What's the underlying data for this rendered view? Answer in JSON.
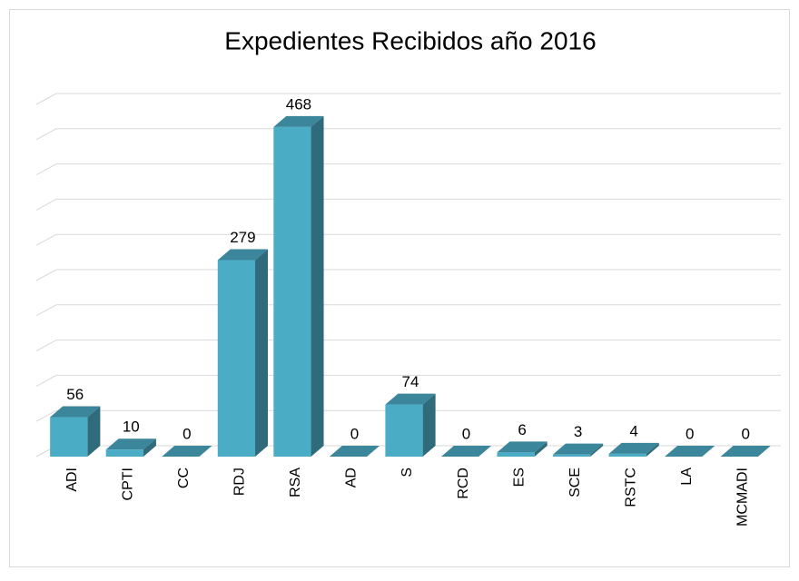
{
  "chart_data": {
    "type": "bar3d",
    "title": "Expedientes Recibidos año 2016",
    "categories": [
      "ADI",
      "CPTI",
      "CC",
      "RDJ",
      "RSA",
      "AD",
      "S",
      "RCD",
      "ES",
      "SCE",
      "RSTC",
      "LA",
      "MCMADI"
    ],
    "values": [
      56,
      10,
      0,
      279,
      468,
      0,
      74,
      0,
      6,
      3,
      4,
      0,
      0
    ],
    "color": "#4bacc6",
    "ylim": [
      0,
      500
    ],
    "yticks": [
      0,
      50,
      100,
      150,
      200,
      250,
      300,
      350,
      400,
      450,
      500
    ],
    "grid": true
  }
}
